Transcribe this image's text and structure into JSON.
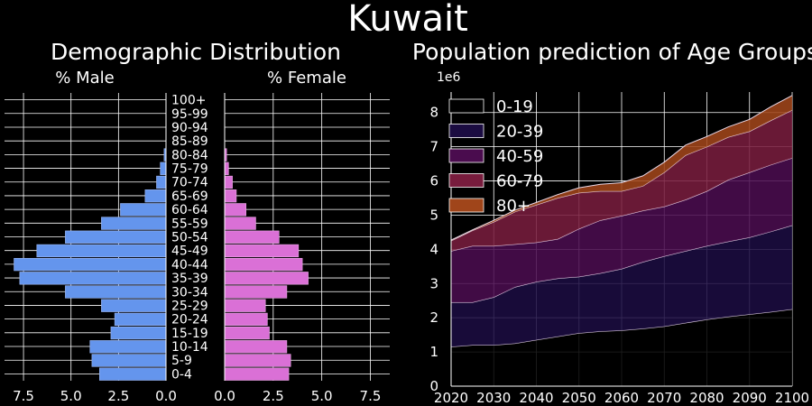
{
  "title": "Kuwait",
  "colors": {
    "background": "#000000",
    "male": "#6495ed",
    "female": "#da70d6",
    "grid": "#ffffff",
    "area": [
      "#000000",
      "#1b0c41",
      "#4a0c4e",
      "#781c3d",
      "#a0451a"
    ]
  },
  "chart_data": [
    {
      "type": "bar",
      "orientation": "horizontal-mirrored",
      "title": "Demographic Distribution",
      "male_label": "% Male",
      "female_label": "% Female",
      "categories": [
        "0-4",
        "5-9",
        "10-14",
        "15-19",
        "20-24",
        "25-29",
        "30-34",
        "35-39",
        "40-44",
        "45-49",
        "50-54",
        "55-59",
        "60-64",
        "65-69",
        "70-74",
        "75-79",
        "80-84",
        "85-89",
        "90-94",
        "95-99",
        "100+"
      ],
      "series": [
        {
          "name": "% Male",
          "values": [
            3.5,
            3.9,
            4.0,
            2.9,
            2.7,
            3.4,
            5.3,
            7.7,
            8.0,
            6.8,
            5.3,
            3.4,
            2.4,
            1.1,
            0.5,
            0.3,
            0.1,
            0.0,
            0.0,
            0.0,
            0.0
          ]
        },
        {
          "name": "% Female",
          "values": [
            3.3,
            3.4,
            3.2,
            2.3,
            2.2,
            2.1,
            3.2,
            4.3,
            4.0,
            3.8,
            2.8,
            1.6,
            1.1,
            0.6,
            0.4,
            0.2,
            0.1,
            0.0,
            0.0,
            0.0,
            0.0
          ]
        }
      ],
      "xlim": [
        0,
        8.5
      ],
      "xticks": [
        {
          "value": 7.5,
          "label": "7.5"
        },
        {
          "value": 5.0,
          "label": "5.0"
        },
        {
          "value": 2.5,
          "label": "2.5"
        },
        {
          "value": 0.0,
          "label": "0.0"
        }
      ],
      "grid": true
    },
    {
      "type": "area",
      "stacked": true,
      "title": "Population prediction of Age Groups",
      "y_multiplier_label": "1e6",
      "x": [
        2020,
        2025,
        2030,
        2035,
        2040,
        2045,
        2050,
        2055,
        2060,
        2065,
        2070,
        2075,
        2080,
        2085,
        2090,
        2095,
        2100
      ],
      "series": [
        {
          "name": "0-19",
          "values": [
            1.15,
            1.2,
            1.2,
            1.25,
            1.35,
            1.45,
            1.55,
            1.6,
            1.63,
            1.68,
            1.75,
            1.85,
            1.95,
            2.03,
            2.1,
            2.17,
            2.25
          ]
        },
        {
          "name": "20-39",
          "values": [
            1.3,
            1.25,
            1.4,
            1.65,
            1.7,
            1.7,
            1.65,
            1.7,
            1.8,
            1.95,
            2.05,
            2.1,
            2.15,
            2.2,
            2.25,
            2.35,
            2.45
          ]
        },
        {
          "name": "40-59",
          "values": [
            1.5,
            1.65,
            1.5,
            1.25,
            1.15,
            1.15,
            1.4,
            1.55,
            1.55,
            1.5,
            1.45,
            1.5,
            1.6,
            1.8,
            1.9,
            1.95,
            1.97
          ]
        },
        {
          "name": "60-79",
          "values": [
            0.3,
            0.45,
            0.7,
            0.95,
            1.1,
            1.2,
            1.05,
            0.85,
            0.72,
            0.72,
            1.0,
            1.3,
            1.3,
            1.25,
            1.2,
            1.3,
            1.4
          ]
        },
        {
          "name": "80+",
          "values": [
            0.02,
            0.02,
            0.05,
            0.05,
            0.07,
            0.1,
            0.15,
            0.2,
            0.25,
            0.3,
            0.3,
            0.3,
            0.3,
            0.3,
            0.35,
            0.4,
            0.43
          ]
        }
      ],
      "xlim": [
        2020,
        2100
      ],
      "ylim": [
        0,
        8.6
      ],
      "xticks": [
        2020,
        2030,
        2040,
        2050,
        2060,
        2070,
        2080,
        2090,
        2100
      ],
      "yticks": [
        0,
        1,
        2,
        3,
        4,
        5,
        6,
        7,
        8
      ],
      "legend_position": "top-left",
      "grid": true
    }
  ]
}
